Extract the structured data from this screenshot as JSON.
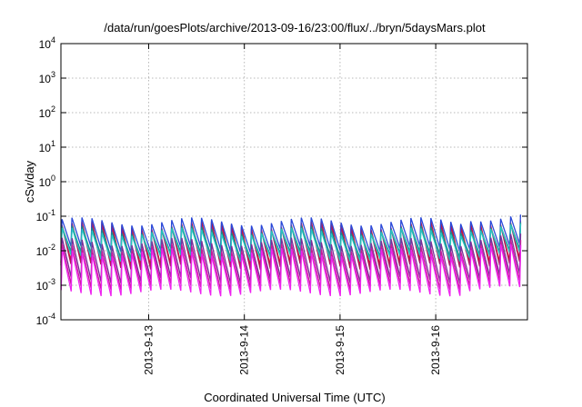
{
  "chart_data": {
    "type": "line",
    "title": "/data/run/goesPlots/archive/2013-09-16/23:00/flux/../bryn/5daysMars.plot",
    "xlabel": "Coordinated Universal Time (UTC)",
    "ylabel": "cSv/day",
    "yscale": "log",
    "ylim": [
      0.0001,
      10000
    ],
    "y_ticks": [
      {
        "base": "10",
        "exp": "-4"
      },
      {
        "base": "10",
        "exp": "-3"
      },
      {
        "base": "10",
        "exp": "-2"
      },
      {
        "base": "10",
        "exp": "-1"
      },
      {
        "base": "10",
        "exp": "0"
      },
      {
        "base": "10",
        "exp": "1"
      },
      {
        "base": "10",
        "exp": "2"
      },
      {
        "base": "10",
        "exp": "3"
      },
      {
        "base": "10",
        "exp": "4"
      }
    ],
    "x_range_days": [
      "2013-09-12 02:00",
      "2013-09-16 23:00"
    ],
    "x_ticks": [
      "2013-9-13",
      "2013-9-14",
      "2013-9-15",
      "2013-9-16"
    ],
    "grid": true,
    "sawtooth_period_hours": 2.5,
    "series": [
      {
        "color": "#e0102a",
        "peak": 0.055,
        "trough": 0.0045
      },
      {
        "color": "#b01a55",
        "peak": 0.05,
        "trough": 0.0035
      },
      {
        "color": "#2a48d8",
        "peak": 0.07,
        "trough": 0.011
      },
      {
        "color": "#1a8a8a",
        "peak": 0.04,
        "trough": 0.0075
      },
      {
        "color": "#26c4c0",
        "peak": 0.035,
        "trough": 0.006
      },
      {
        "color": "#7a2c9a",
        "peak": 0.018,
        "trough": 0.0014
      },
      {
        "color": "#c81a9a",
        "peak": 0.012,
        "trough": 0.0009
      },
      {
        "color": "#ee22ee",
        "peak": 0.009,
        "trough": 0.0006
      }
    ]
  }
}
